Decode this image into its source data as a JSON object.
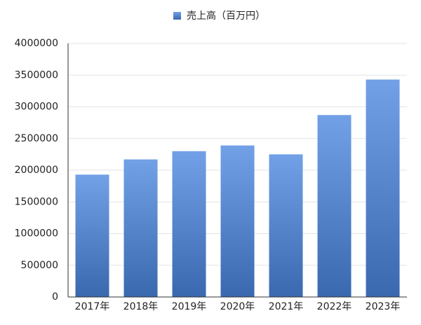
{
  "chart_data": {
    "type": "bar",
    "legend": "売上高（百万円）",
    "categories": [
      "2017年",
      "2018年",
      "2019年",
      "2020年",
      "2021年",
      "2022年",
      "2023年"
    ],
    "series": [
      {
        "name": "売上高（百万円）",
        "color": "#4a86e0",
        "values": [
          1930000,
          2170000,
          2300000,
          2390000,
          2250000,
          2870000,
          3430000
        ]
      }
    ],
    "ylim": [
      0,
      4000000
    ],
    "yticks": [
      0,
      500000,
      1000000,
      1500000,
      2000000,
      2500000,
      3000000,
      3500000,
      4000000
    ],
    "grid": true,
    "legend_position": "top"
  }
}
